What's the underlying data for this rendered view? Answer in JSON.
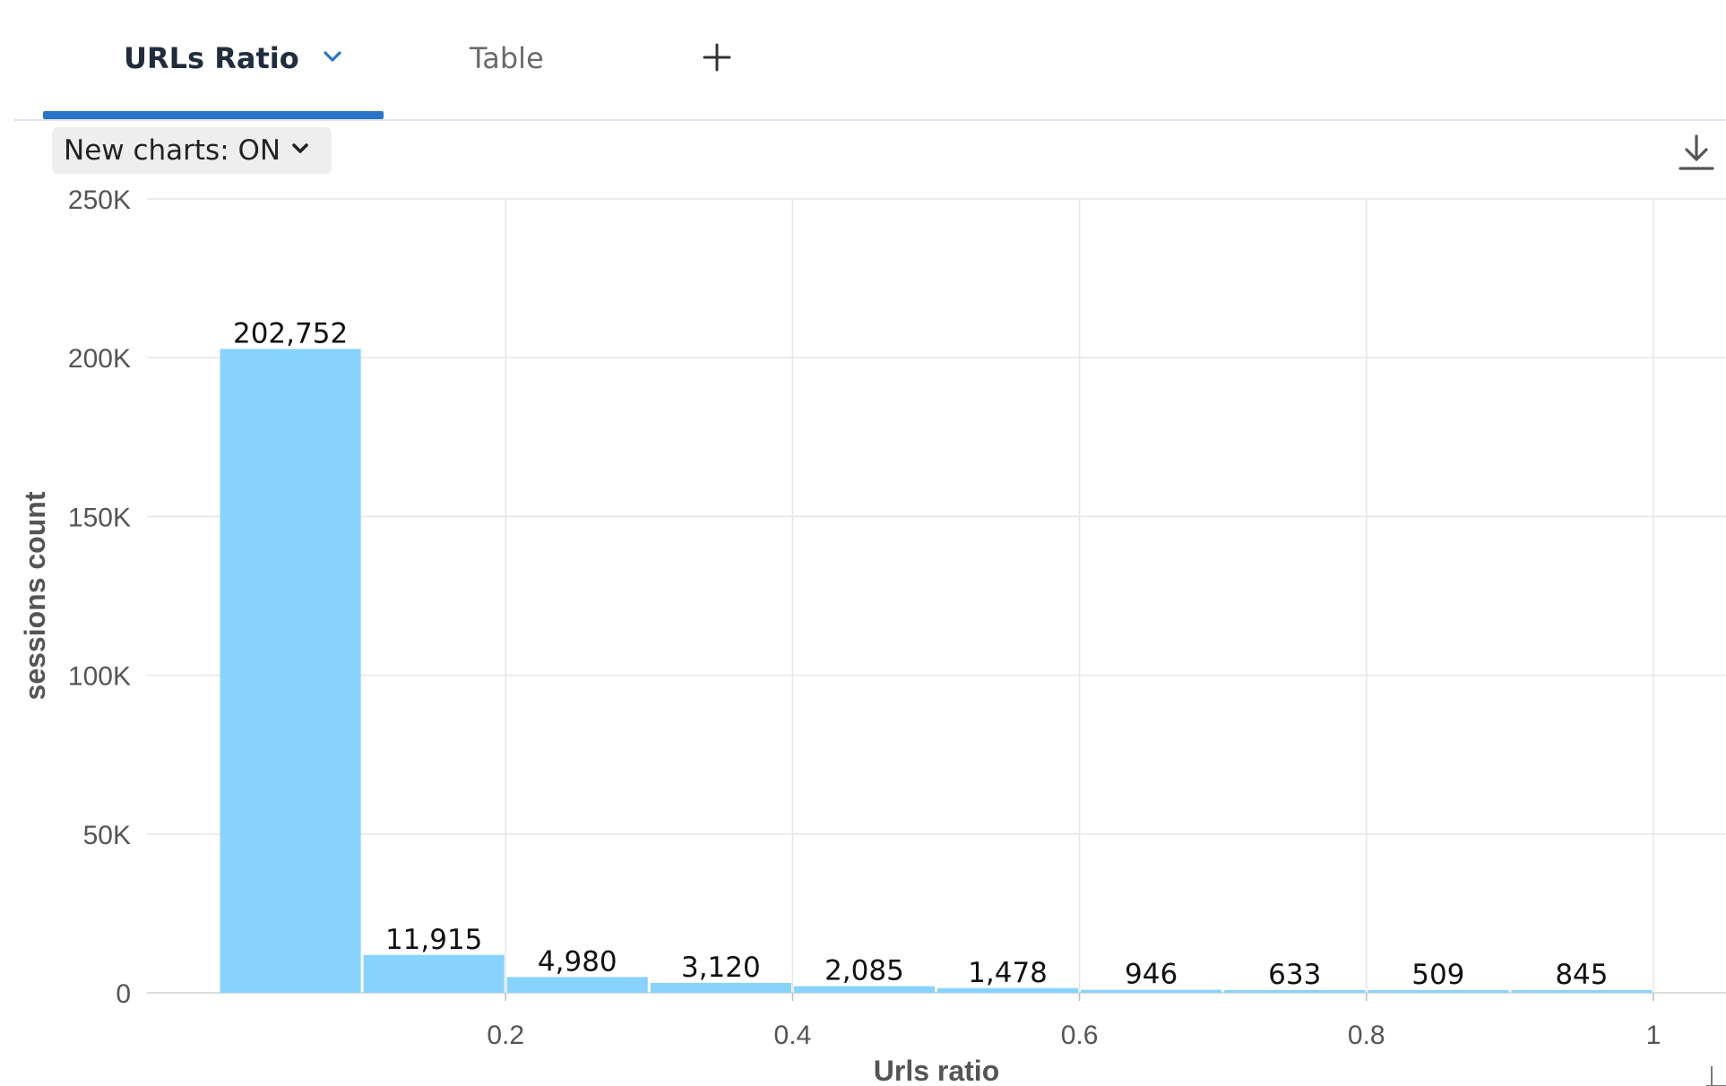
{
  "tabs": [
    {
      "label": "URLs Ratio",
      "active": true
    },
    {
      "label": "Table",
      "active": false
    }
  ],
  "icons": {
    "tab_menu": "chevron-down-icon",
    "add_tab": "plus-icon",
    "toggle_menu": "chevron-down-icon",
    "download": "download-icon"
  },
  "toolbar": {
    "new_charts_label": "New charts: ON"
  },
  "colors": {
    "accent": "#2b74c7",
    "bar": "#87d3fd",
    "grid": "#e6e6e6"
  },
  "chart_data": {
    "type": "bar",
    "title": "",
    "xlabel": "Urls ratio",
    "ylabel": "sessions count",
    "bins": [
      {
        "x0": 0.0,
        "x1": 0.1,
        "value": 202752,
        "label": "202,752"
      },
      {
        "x0": 0.1,
        "x1": 0.2,
        "value": 11915,
        "label": "11,915"
      },
      {
        "x0": 0.2,
        "x1": 0.3,
        "value": 4980,
        "label": "4,980"
      },
      {
        "x0": 0.3,
        "x1": 0.4,
        "value": 3120,
        "label": "3,120"
      },
      {
        "x0": 0.4,
        "x1": 0.5,
        "value": 2085,
        "label": "2,085"
      },
      {
        "x0": 0.5,
        "x1": 0.6,
        "value": 1478,
        "label": "1,478"
      },
      {
        "x0": 0.6,
        "x1": 0.7,
        "value": 946,
        "label": "946"
      },
      {
        "x0": 0.7,
        "x1": 0.8,
        "value": 633,
        "label": "633"
      },
      {
        "x0": 0.8,
        "x1": 0.9,
        "value": 509,
        "label": "509"
      },
      {
        "x0": 0.9,
        "x1": 1.0,
        "value": 845,
        "label": "845"
      }
    ],
    "xlim": [
      -0.05,
      1.05
    ],
    "ylim": [
      0,
      250000
    ],
    "xticks": [
      {
        "value": 0.2,
        "label": "0.2"
      },
      {
        "value": 0.4,
        "label": "0.4"
      },
      {
        "value": 0.6,
        "label": "0.6"
      },
      {
        "value": 0.8,
        "label": "0.8"
      },
      {
        "value": 1.0,
        "label": "1"
      }
    ],
    "yticks": [
      {
        "value": 0,
        "label": "0"
      },
      {
        "value": 50000,
        "label": "50K"
      },
      {
        "value": 100000,
        "label": "100K"
      },
      {
        "value": 150000,
        "label": "150K"
      },
      {
        "value": 200000,
        "label": "200K"
      },
      {
        "value": 250000,
        "label": "250K"
      }
    ],
    "grid": true,
    "legend": "none"
  }
}
